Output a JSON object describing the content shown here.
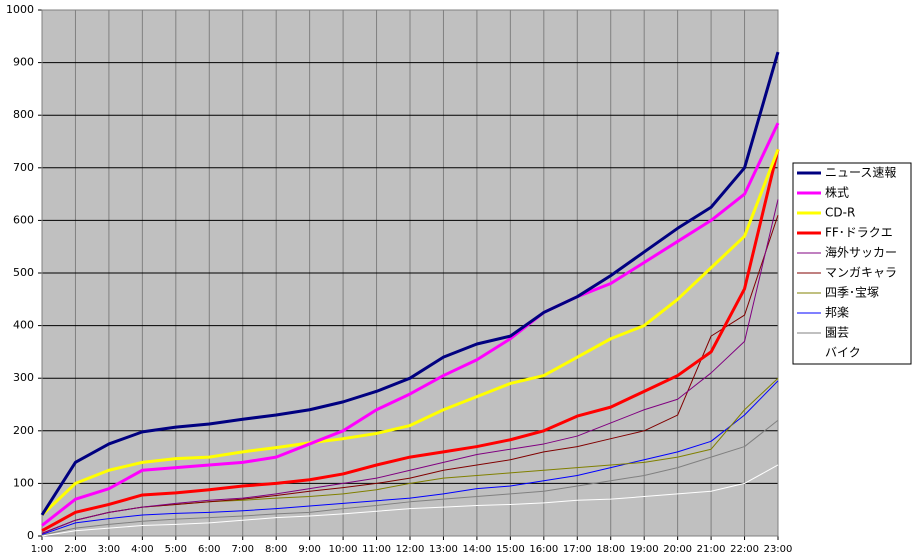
{
  "chart_data": {
    "type": "line",
    "categories": [
      "1:00",
      "2:00",
      "3:00",
      "4:00",
      "5:00",
      "6:00",
      "7:00",
      "8:00",
      "9:00",
      "10:00",
      "11:00",
      "12:00",
      "13:00",
      "14:00",
      "15:00",
      "16:00",
      "17:00",
      "18:00",
      "19:00",
      "20:00",
      "21:00",
      "22:00",
      "23:00"
    ],
    "ylim": [
      0,
      1000
    ],
    "yticks": [
      0,
      100,
      200,
      300,
      400,
      500,
      600,
      700,
      800,
      900,
      1000
    ],
    "grid": true,
    "legend": "right",
    "series": [
      {
        "name": "ニュース速報",
        "color": "#000080",
        "line_width": 3,
        "values": [
          40,
          140,
          175,
          198,
          207,
          213,
          222,
          230,
          240,
          255,
          275,
          300,
          340,
          365,
          380,
          425,
          455,
          495,
          540,
          585,
          625,
          700,
          920
        ]
      },
      {
        "name": "株式",
        "color": "#ff00ff",
        "line_width": 3,
        "values": [
          20,
          70,
          90,
          125,
          130,
          135,
          140,
          150,
          175,
          200,
          240,
          270,
          305,
          335,
          375,
          425,
          455,
          480,
          520,
          560,
          600,
          650,
          785
        ]
      },
      {
        "name": "CD-R",
        "color": "#ffff00",
        "line_width": 3,
        "values": [
          40,
          100,
          125,
          140,
          147,
          150,
          160,
          168,
          177,
          185,
          195,
          210,
          240,
          265,
          290,
          305,
          340,
          375,
          400,
          450,
          510,
          570,
          735
        ]
      },
      {
        "name": "FF･ドラクエ",
        "color": "#ff0000",
        "line_width": 3,
        "values": [
          10,
          45,
          60,
          78,
          82,
          88,
          95,
          100,
          107,
          118,
          135,
          150,
          160,
          170,
          183,
          200,
          228,
          245,
          275,
          305,
          350,
          470,
          735
        ]
      },
      {
        "name": "海外サッカー",
        "color": "#800080",
        "line_width": 1,
        "values": [
          5,
          30,
          45,
          55,
          62,
          68,
          72,
          80,
          90,
          100,
          110,
          125,
          140,
          155,
          165,
          175,
          190,
          215,
          240,
          260,
          310,
          370,
          640
        ]
      },
      {
        "name": "マンガキャラ",
        "color": "#800000",
        "line_width": 1,
        "values": [
          5,
          30,
          45,
          55,
          60,
          65,
          70,
          77,
          85,
          92,
          100,
          110,
          125,
          135,
          145,
          160,
          170,
          185,
          200,
          230,
          380,
          420,
          610
        ]
      },
      {
        "name": "四季･宝塚",
        "color": "#808000",
        "line_width": 1,
        "values": [
          5,
          30,
          45,
          55,
          60,
          65,
          68,
          72,
          75,
          80,
          88,
          100,
          110,
          115,
          120,
          125,
          130,
          135,
          140,
          150,
          165,
          240,
          300
        ]
      },
      {
        "name": "邦楽",
        "color": "#0000ff",
        "line_width": 1,
        "values": [
          3,
          25,
          33,
          40,
          43,
          45,
          48,
          52,
          57,
          62,
          67,
          72,
          80,
          90,
          95,
          105,
          115,
          130,
          145,
          160,
          180,
          230,
          295
        ]
      },
      {
        "name": "園芸",
        "color": "#808080",
        "line_width": 1,
        "values": [
          2,
          15,
          22,
          28,
          32,
          35,
          38,
          42,
          45,
          52,
          58,
          65,
          70,
          75,
          80,
          85,
          95,
          105,
          115,
          130,
          150,
          170,
          220
        ]
      },
      {
        "name": "バイク",
        "color": "#ffffff",
        "line_width": 1,
        "values": [
          0,
          10,
          15,
          20,
          22,
          25,
          30,
          35,
          38,
          42,
          47,
          52,
          55,
          58,
          60,
          63,
          68,
          70,
          75,
          80,
          85,
          100,
          135
        ]
      }
    ]
  }
}
